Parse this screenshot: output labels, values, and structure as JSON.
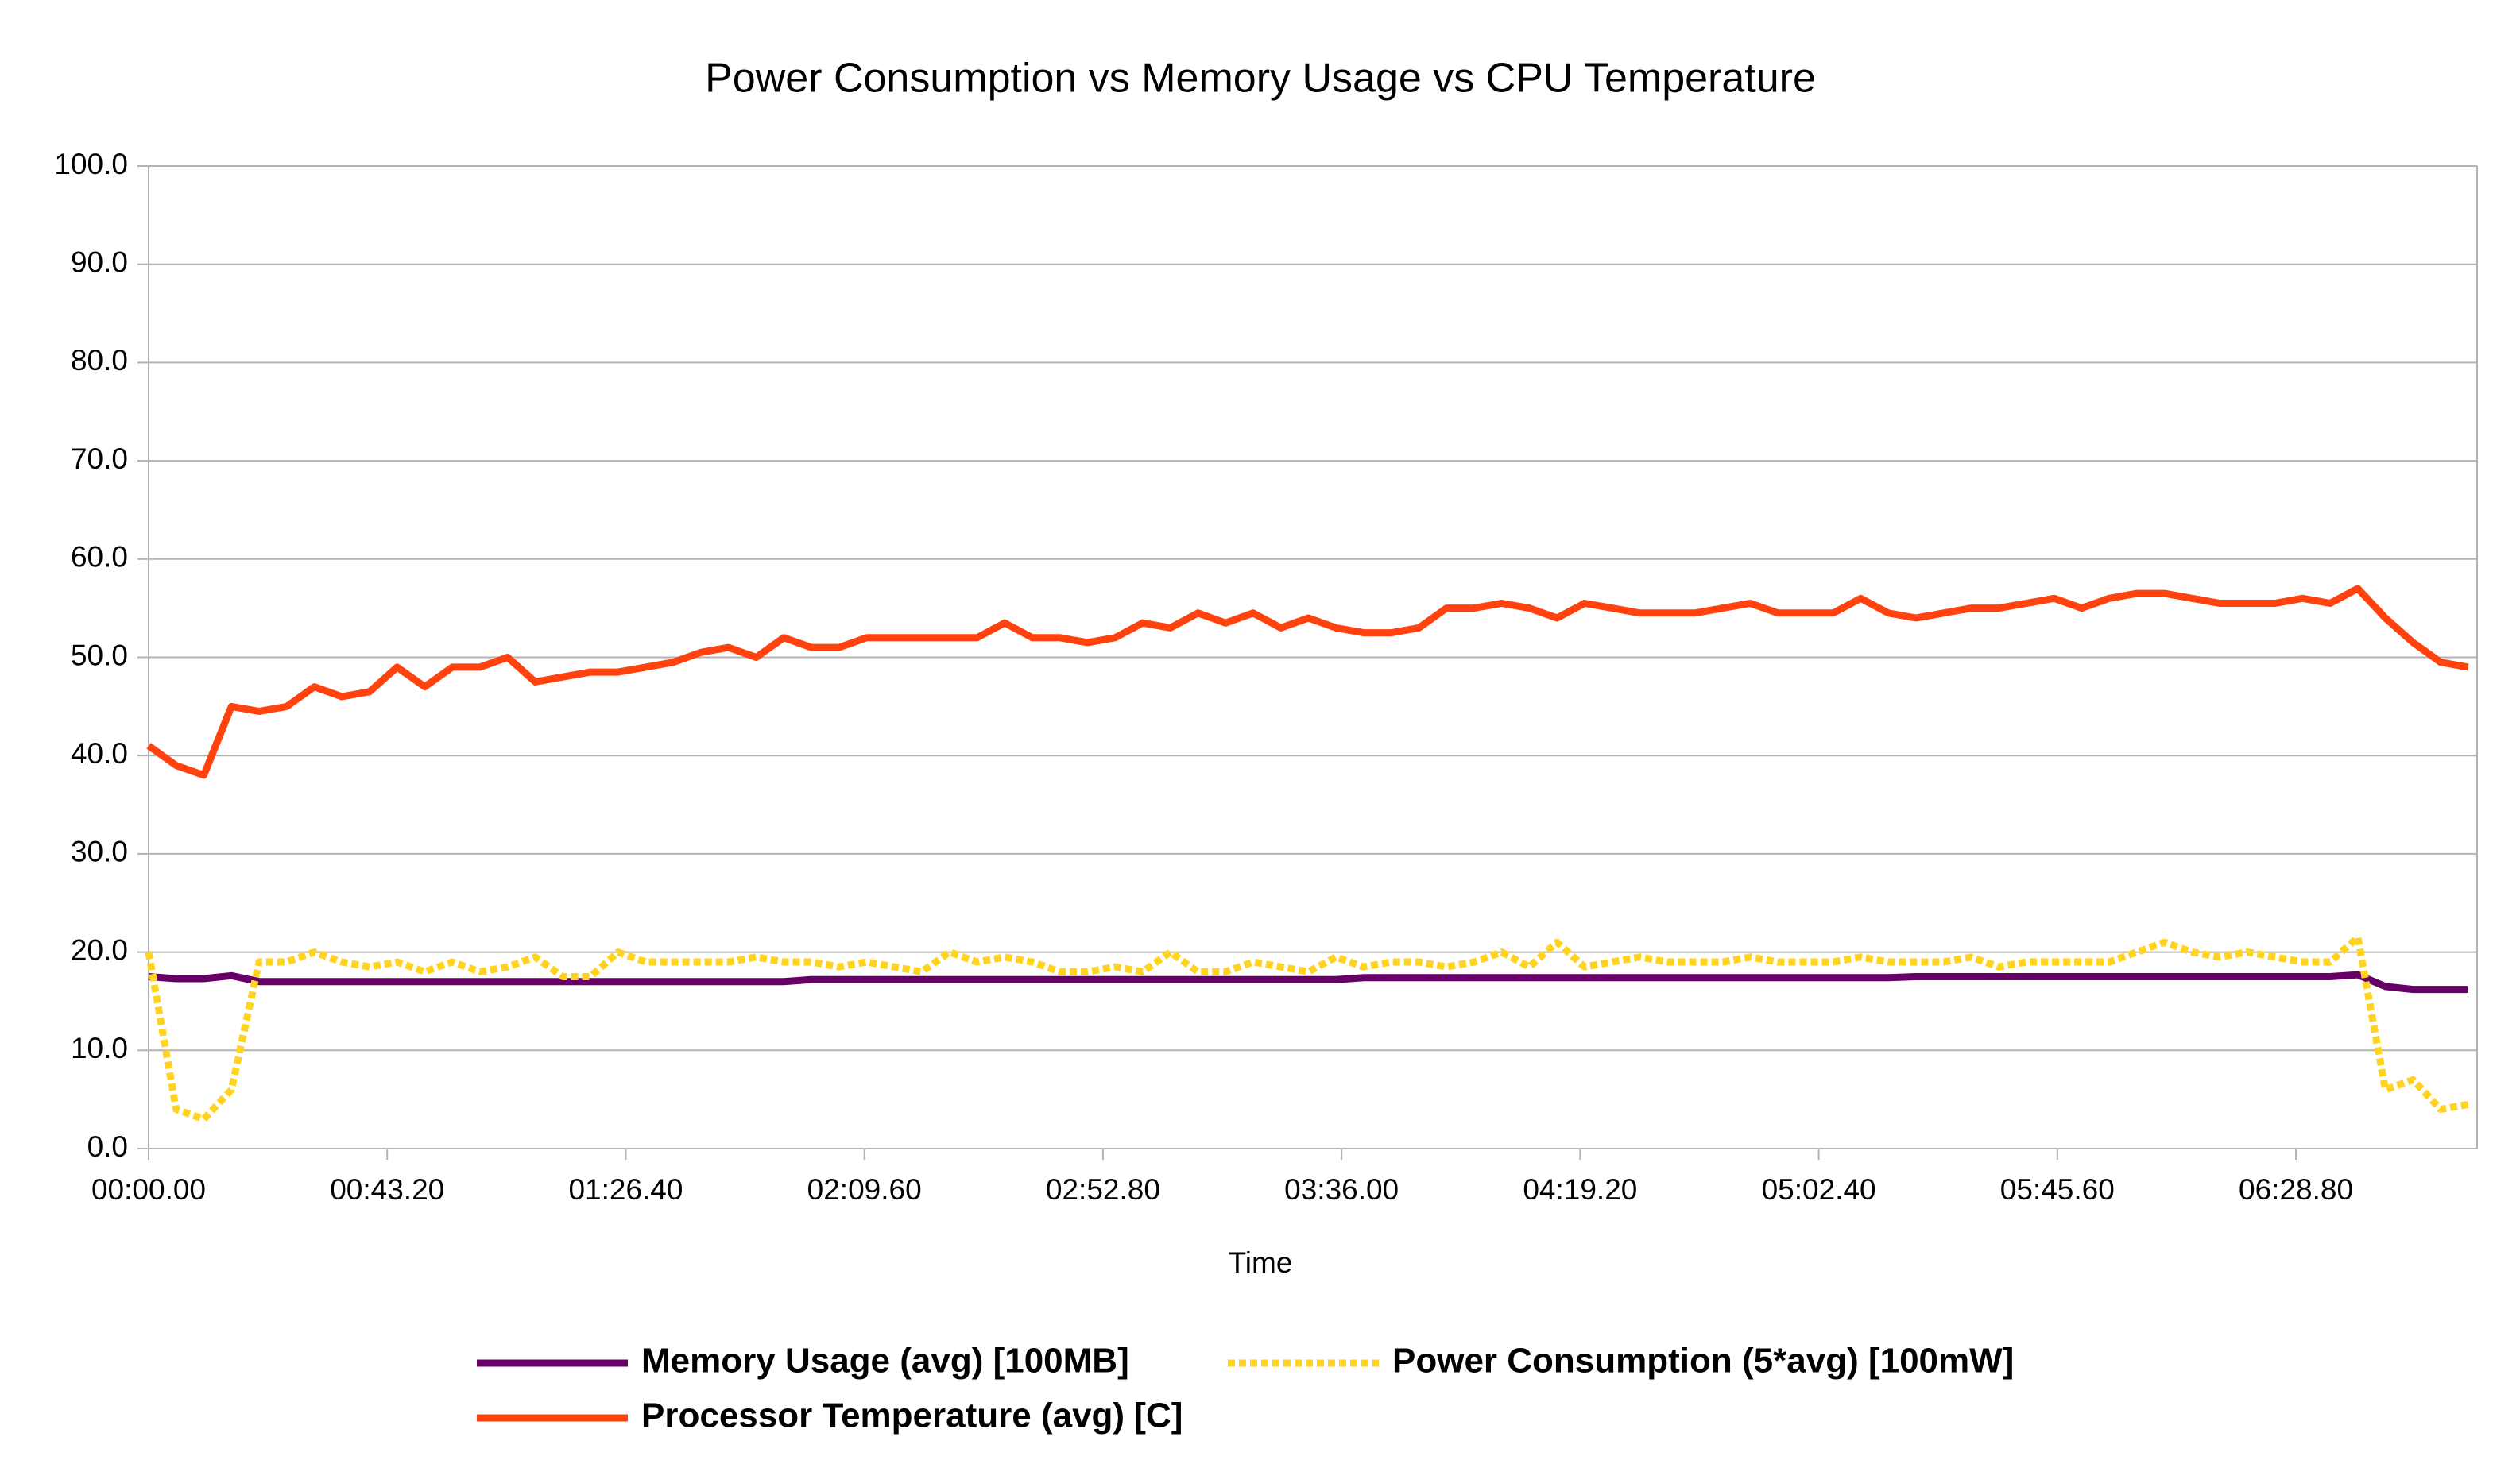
{
  "chart_data": {
    "type": "line",
    "title": "Power Consumption vs Memory Usage vs CPU Temperature",
    "x_label": "Time",
    "x": [
      0,
      5,
      10,
      15,
      20,
      25,
      30,
      35,
      40,
      45,
      50,
      55,
      60,
      65,
      70,
      75,
      80,
      85,
      90,
      95,
      100,
      105,
      110,
      115,
      120,
      125,
      130,
      135,
      140,
      145,
      150,
      155,
      160,
      165,
      170,
      175,
      180,
      185,
      190,
      195,
      200,
      205,
      210,
      215,
      220,
      225,
      230,
      235,
      240,
      245,
      250,
      255,
      260,
      265,
      270,
      275,
      280,
      285,
      290,
      295,
      300,
      305,
      310,
      315,
      320,
      325,
      330,
      335,
      340,
      345,
      350,
      355,
      360,
      365,
      370,
      375,
      380,
      385,
      390,
      395,
      400,
      405,
      410,
      415,
      420
    ],
    "xlim": [
      0,
      421.6
    ],
    "xticks": [
      {
        "value": 0,
        "label": "00:00.00"
      },
      {
        "value": 43.2,
        "label": "00:43.20"
      },
      {
        "value": 86.4,
        "label": "01:26.40"
      },
      {
        "value": 129.6,
        "label": "02:09.60"
      },
      {
        "value": 172.8,
        "label": "02:52.80"
      },
      {
        "value": 216,
        "label": "03:36.00"
      },
      {
        "value": 259.2,
        "label": "04:19.20"
      },
      {
        "value": 302.4,
        "label": "05:02.40"
      },
      {
        "value": 345.6,
        "label": "05:45.60"
      },
      {
        "value": 388.8,
        "label": "06:28.80"
      }
    ],
    "ylim": [
      0,
      100
    ],
    "yticks": [
      {
        "value": 0,
        "label": "0.0"
      },
      {
        "value": 10,
        "label": "10.0"
      },
      {
        "value": 20,
        "label": "20.0"
      },
      {
        "value": 30,
        "label": "30.0"
      },
      {
        "value": 40,
        "label": "40.0"
      },
      {
        "value": 50,
        "label": "50.0"
      },
      {
        "value": 60,
        "label": "60.0"
      },
      {
        "value": 70,
        "label": "70.0"
      },
      {
        "value": 80,
        "label": "80.0"
      },
      {
        "value": 90,
        "label": "90.0"
      },
      {
        "value": 100,
        "label": "100.0"
      }
    ],
    "grid": true,
    "legend": "bottom",
    "series": [
      {
        "name": "Memory Usage (avg) [100MB]",
        "color": "#660066",
        "dashed": false,
        "values": [
          17.5,
          17.3,
          17.3,
          17.6,
          17.0,
          17.0,
          17.0,
          17.0,
          17.0,
          17.0,
          17.0,
          17.0,
          17.0,
          17.0,
          17.0,
          17.0,
          17.0,
          17.0,
          17.0,
          17.0,
          17.0,
          17.0,
          17.0,
          17.0,
          17.2,
          17.2,
          17.2,
          17.2,
          17.2,
          17.2,
          17.2,
          17.2,
          17.2,
          17.2,
          17.2,
          17.2,
          17.2,
          17.2,
          17.2,
          17.2,
          17.2,
          17.2,
          17.2,
          17.2,
          17.4,
          17.4,
          17.4,
          17.4,
          17.4,
          17.4,
          17.4,
          17.4,
          17.4,
          17.4,
          17.4,
          17.4,
          17.4,
          17.4,
          17.4,
          17.4,
          17.4,
          17.4,
          17.4,
          17.4,
          17.5,
          17.5,
          17.5,
          17.5,
          17.5,
          17.5,
          17.5,
          17.5,
          17.5,
          17.5,
          17.5,
          17.5,
          17.5,
          17.5,
          17.5,
          17.5,
          17.7,
          16.5,
          16.2,
          16.2,
          16.2
        ]
      },
      {
        "name": "Power Consumption (5*avg) [100mW]",
        "color": "#ffd320",
        "dashed": true,
        "values": [
          20,
          4,
          3,
          6,
          19,
          19,
          20,
          19,
          18.5,
          19,
          18,
          19,
          18,
          18.5,
          19.5,
          17.5,
          17.5,
          20,
          19,
          19,
          19,
          19,
          19.5,
          19,
          19,
          18.5,
          19,
          18.5,
          18,
          20,
          19,
          19.5,
          19,
          18,
          18,
          18.5,
          18,
          20,
          18,
          18,
          19,
          18.5,
          18,
          19.5,
          18.5,
          19,
          19,
          18.5,
          19,
          20,
          18.5,
          21,
          18.5,
          19,
          19.5,
          19,
          19,
          19,
          19.5,
          19,
          19,
          19,
          19.5,
          19,
          19,
          19,
          19.5,
          18.5,
          19,
          19,
          19,
          19,
          20,
          21,
          20,
          19.5,
          20,
          19.5,
          19,
          19,
          21.5,
          6,
          7,
          4,
          4.5
        ]
      },
      {
        "name": "Processor Temperature (avg) [C]",
        "color": "#ff420e",
        "dashed": false,
        "values": [
          41,
          39,
          38,
          45,
          44.5,
          45,
          47,
          46,
          46.5,
          49,
          47,
          49,
          49,
          50,
          47.5,
          48,
          48.5,
          48.5,
          49,
          49.5,
          50.5,
          51,
          50,
          52,
          51,
          51,
          52,
          52,
          52,
          52,
          52,
          53.5,
          52,
          52,
          51.5,
          52,
          53.5,
          53,
          54.5,
          53.5,
          54.5,
          53,
          54,
          53,
          52.5,
          52.5,
          53,
          55,
          55,
          55.5,
          55,
          54,
          55.5,
          55,
          54.5,
          54.5,
          54.5,
          55,
          55.5,
          54.5,
          54.5,
          54.5,
          56,
          54.5,
          54,
          54.5,
          55,
          55,
          55.5,
          56,
          55,
          56,
          56.5,
          56.5,
          56,
          55.5,
          55.5,
          55.5,
          56,
          55.5,
          57,
          54,
          51.5,
          49.5,
          49
        ]
      }
    ]
  }
}
